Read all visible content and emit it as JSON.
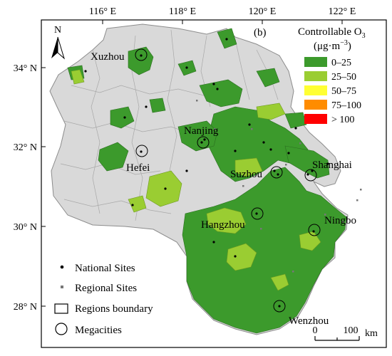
{
  "panel_label": "(b)",
  "north_label": "N",
  "axes": {
    "top_ticks": [
      "116° E",
      "118° E",
      "120° E",
      "122° E"
    ],
    "left_ticks": [
      "34° N",
      "32° N",
      "30° N",
      "28° N"
    ]
  },
  "legend": {
    "title_line1": "Controllable O",
    "title_sub": "3",
    "title_line2": "(μg·m",
    "title_sup": "−3",
    "title_close": ")",
    "classes": [
      {
        "label": "0–25",
        "color": "#3c9a2c"
      },
      {
        "label": "25–50",
        "color": "#9acd32"
      },
      {
        "label": "50–75",
        "color": "#ffff33"
      },
      {
        "label": "75–100",
        "color": "#ff8c00"
      },
      {
        "label": "> 100",
        "color": "#ff0000"
      }
    ]
  },
  "symbols": {
    "national": "National Sites",
    "regional": "Regional Sites",
    "boundary": "Regions boundary",
    "megacities": "Megacities"
  },
  "cities": [
    "Xuzhou",
    "Nanjing",
    "Hefei",
    "Suzhou",
    "Shanghai",
    "Hangzhou",
    "Ningbo",
    "Wenzhou"
  ],
  "scale": {
    "zero": "0",
    "hundred": "100",
    "unit": "km"
  },
  "colors": {
    "background_region": "#d9d9d9",
    "region_border": "#8c8c8c",
    "frame": "#000000"
  }
}
